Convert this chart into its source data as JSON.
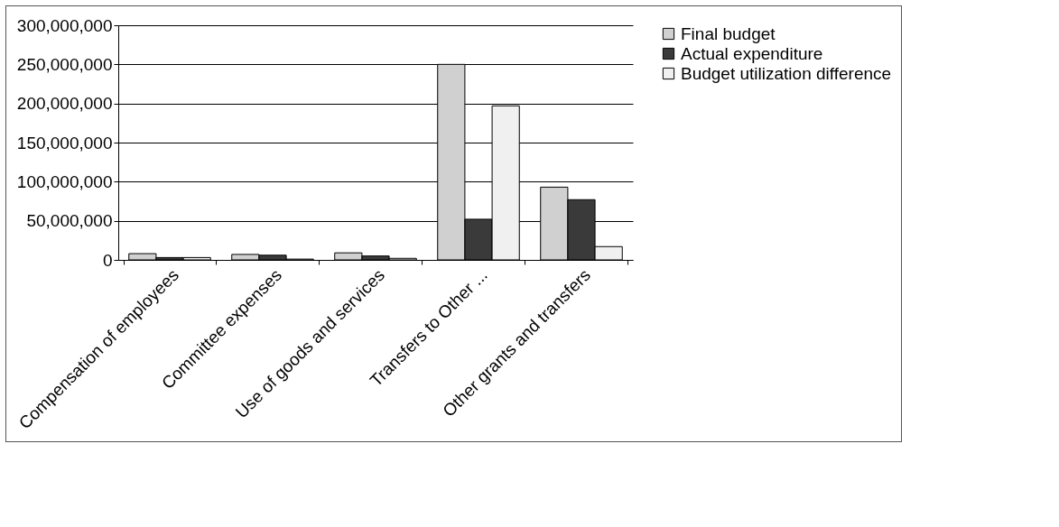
{
  "chart_data": {
    "type": "bar",
    "categories": [
      "Compensation of employees",
      "Committee expenses",
      "Use of goods and services",
      "Transfers to Other ...",
      "Other grants and transfers"
    ],
    "series": [
      {
        "name": "Final budget",
        "color": "#d0d0d0",
        "values": [
          8000000,
          7000000,
          9000000,
          250000000,
          93000000
        ]
      },
      {
        "name": "Actual expenditure",
        "color": "#3a3a3a",
        "values": [
          3000000,
          6000000,
          5000000,
          52000000,
          77000000
        ]
      },
      {
        "name": "Budget utilization difference",
        "color": "#f0f0f0",
        "values": [
          3000000,
          1000000,
          2000000,
          197000000,
          17000000
        ]
      }
    ],
    "ylim": [
      0,
      300000000
    ],
    "yticks": [
      {
        "value": 0,
        "label": "0"
      },
      {
        "value": 50000000,
        "label": "50,000,000"
      },
      {
        "value": 100000000,
        "label": "100,000,000"
      },
      {
        "value": 150000000,
        "label": "150,000,000"
      },
      {
        "value": 200000000,
        "label": "200,000,000"
      },
      {
        "value": 250000000,
        "label": "250,000,000"
      },
      {
        "value": 300000000,
        "label": "300,000,000"
      }
    ],
    "grid": "y",
    "legend": "right"
  }
}
